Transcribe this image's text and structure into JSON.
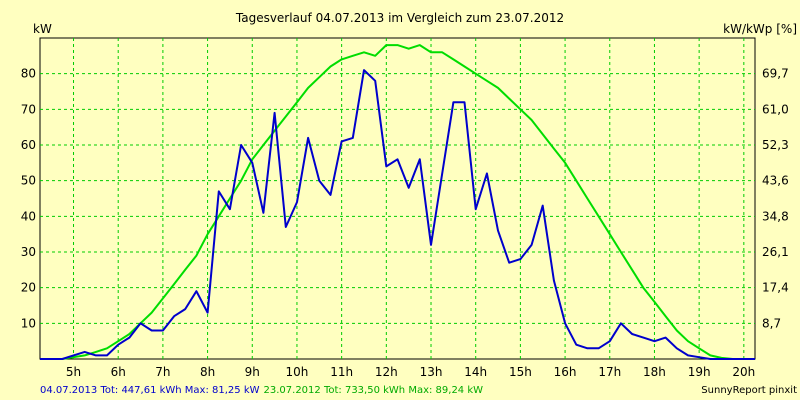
{
  "chart_data": {
    "type": "line",
    "title": "Tagesverlauf 04.07.2013 im Vergleich zum 23.07.2012",
    "ylabel_left": "kW",
    "ylabel_right": "kW/kWp [%]",
    "ylim": [
      0,
      90
    ],
    "xlim": [
      4.25,
      20.25
    ],
    "x_tick_labels": [
      "5h",
      "6h",
      "7h",
      "8h",
      "9h",
      "10h",
      "11h",
      "12h",
      "13h",
      "14h",
      "15h",
      "16h",
      "17h",
      "18h",
      "19h",
      "20h"
    ],
    "x_tick_values": [
      5,
      6,
      7,
      8,
      9,
      10,
      11,
      12,
      13,
      14,
      15,
      16,
      17,
      18,
      19,
      20
    ],
    "y_tick_labels_left": [
      "10",
      "20",
      "30",
      "40",
      "50",
      "60",
      "70",
      "80"
    ],
    "y_tick_values_left": [
      10,
      20,
      30,
      40,
      50,
      60,
      70,
      80
    ],
    "y_tick_labels_right": [
      "8,7",
      "17,4",
      "26,1",
      "34,8",
      "43,6",
      "52,3",
      "61,0",
      "69,7"
    ],
    "grid": true,
    "series": [
      {
        "name": "04.07.2013",
        "color": "#0000cc",
        "x": [
          4.25,
          4.75,
          5.0,
          5.25,
          5.5,
          5.75,
          6.0,
          6.25,
          6.5,
          6.75,
          7.0,
          7.25,
          7.5,
          7.75,
          8.0,
          8.25,
          8.5,
          8.75,
          9.0,
          9.25,
          9.5,
          9.75,
          10.0,
          10.25,
          10.5,
          10.75,
          11.0,
          11.25,
          11.5,
          11.75,
          12.0,
          12.25,
          12.5,
          12.75,
          13.0,
          13.25,
          13.5,
          13.75,
          14.0,
          14.25,
          14.5,
          14.75,
          15.0,
          15.25,
          15.5,
          15.75,
          16.0,
          16.25,
          16.5,
          16.75,
          17.0,
          17.25,
          17.5,
          17.75,
          18.0,
          18.25,
          18.5,
          18.75,
          19.0,
          19.25,
          19.5,
          19.75,
          20.0,
          20.25
        ],
        "values": [
          0,
          0,
          1,
          2,
          1,
          1,
          4,
          6,
          10,
          8,
          8,
          12,
          14,
          19,
          13,
          47,
          42,
          60,
          55,
          41,
          69,
          37,
          44,
          62,
          50,
          46,
          61,
          62,
          81,
          78,
          54,
          56,
          48,
          56,
          32,
          52,
          72,
          72,
          42,
          52,
          36,
          27,
          28,
          32,
          43,
          22,
          10,
          4,
          3,
          3,
          5,
          10,
          7,
          6,
          5,
          6,
          3,
          1,
          0.5,
          0,
          0,
          0,
          0,
          0
        ]
      },
      {
        "name": "23.07.2012",
        "color": "#00dd00",
        "x": [
          4.25,
          4.5,
          4.75,
          5.0,
          5.25,
          5.5,
          5.75,
          6.0,
          6.25,
          6.5,
          6.75,
          7.0,
          7.25,
          7.5,
          7.75,
          8.0,
          8.25,
          8.5,
          8.75,
          9.0,
          9.25,
          9.5,
          9.75,
          10.0,
          10.25,
          10.5,
          10.75,
          11.0,
          11.25,
          11.5,
          11.75,
          12.0,
          12.25,
          12.5,
          12.75,
          13.0,
          13.25,
          13.5,
          13.75,
          14.0,
          14.25,
          14.5,
          14.75,
          15.0,
          15.25,
          15.5,
          15.75,
          16.0,
          16.25,
          16.5,
          16.75,
          17.0,
          17.25,
          17.5,
          17.75,
          18.0,
          18.25,
          18.5,
          18.75,
          19.0,
          19.25,
          19.5,
          19.75,
          20.0,
          20.25
        ],
        "values": [
          0,
          0,
          0,
          0.5,
          1,
          2,
          3,
          5,
          7,
          10,
          13,
          17,
          21,
          25,
          29,
          35,
          40,
          45,
          50,
          56,
          60,
          64,
          68,
          72,
          76,
          79,
          82,
          84,
          85,
          86,
          85,
          88,
          88,
          87,
          88,
          86,
          86,
          84,
          82,
          80,
          78,
          76,
          73,
          70,
          67,
          63,
          59,
          55,
          50,
          45,
          40,
          35,
          30,
          25,
          20,
          16,
          12,
          8,
          5,
          3,
          1,
          0.3,
          0,
          0,
          0
        ]
      }
    ]
  },
  "footer": {
    "series1_date": "04.07.2013",
    "series1_stats": " Tot: 447,61 kWh Max: 81,25 kW",
    "series2_date": "23.07.2012",
    "series2_stats": " Tot: 733,50 kWh Max: 89,24 kW",
    "credit": "SunnyReport pinxit"
  }
}
